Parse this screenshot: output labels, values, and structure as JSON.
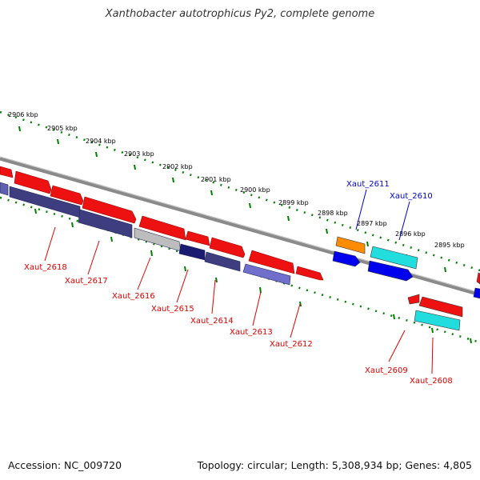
{
  "title": "Xanthobacter autotrophicus Py2, complete genome",
  "footer": {
    "accession": "Accession: NC_009720",
    "stats": "Topology: circular; Length: 5,308,934 bp; Genes: 4,805"
  },
  "scale": {
    "unit": "kbp",
    "ticks": [
      "2906 kbp",
      "2905 kbp",
      "2904 kbp",
      "2903 kbp",
      "2902 kbp",
      "2901 kbp",
      "2900 kbp",
      "2899 kbp",
      "2898 kbp",
      "2897 kbp",
      "2896 kbp",
      "2895 kbp"
    ]
  },
  "colors": {
    "red": "#ee1111",
    "navy": "#3d3d80",
    "slate": "#5f5fb0",
    "grey": "#bdbdbd",
    "darknavy": "#1a1a70",
    "orange": "#ff8c00",
    "blue": "#0000ee",
    "cyan": "#22dddd",
    "axis": "#888888",
    "dots": "#008000",
    "label_red": "#dd0000",
    "label_blue": "#0000cc"
  },
  "gene_labels": {
    "top": [
      "Xaut_2611",
      "Xaut_2610"
    ],
    "bottom": [
      "Xaut_2618",
      "Xaut_2617",
      "Xaut_2616",
      "Xaut_2615",
      "Xaut_2614",
      "Xaut_2613",
      "Xaut_2612",
      "Xaut_2609",
      "Xaut_2608"
    ]
  }
}
